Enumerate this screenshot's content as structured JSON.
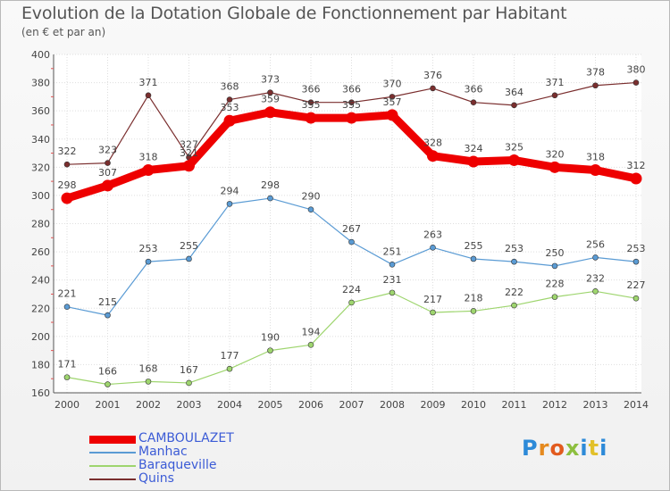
{
  "title": "Evolution de la Dotation Globale de Fonctionnement par Habitant",
  "subtitle": "(en € et par an)",
  "logo": {
    "text": "Proxiti",
    "colors": [
      "#2d8ad8",
      "#e58a1f",
      "#e25b1e",
      "#8dbf3f",
      "#2d8ad8",
      "#e2c02a",
      "#2d8ad8"
    ]
  },
  "chart_data": {
    "type": "line",
    "title": "Evolution de la Dotation Globale de Fonctionnement par Habitant",
    "subtitle": "(en € et par an)",
    "xlabel": "",
    "ylabel": "",
    "ylim": [
      160,
      400
    ],
    "yticks": [
      160,
      180,
      200,
      220,
      240,
      260,
      280,
      300,
      320,
      340,
      360,
      380,
      400
    ],
    "grid": true,
    "legend": "bottom-left",
    "x": [
      "2000",
      "2001",
      "2002",
      "2003",
      "2004",
      "2005",
      "2006",
      "2007",
      "2008",
      "2009",
      "2010",
      "2011",
      "2012",
      "2013",
      "2014"
    ],
    "series": [
      {
        "name": "Quins",
        "color": "#7a2e2e",
        "values": [
          322,
          323,
          371,
          327,
          368,
          373,
          366,
          366,
          370,
          376,
          366,
          364,
          371,
          378,
          380
        ]
      },
      {
        "name": "Baraqueville",
        "color": "#9ed56e",
        "values": [
          171,
          166,
          168,
          167,
          177,
          190,
          194,
          224,
          231,
          217,
          218,
          222,
          228,
          232,
          227
        ]
      },
      {
        "name": "Manhac",
        "color": "#5a9bd4",
        "values": [
          221,
          215,
          253,
          255,
          294,
          298,
          290,
          267,
          251,
          263,
          255,
          253,
          250,
          256,
          253
        ]
      },
      {
        "name": "CAMBOULAZET",
        "color": "#ee0000",
        "values": [
          298,
          307,
          318,
          321,
          353,
          359,
          355,
          355,
          357,
          328,
          324,
          325,
          320,
          318,
          312
        ]
      }
    ]
  },
  "legend": [
    {
      "name": "CAMBOULAZET",
      "color": "#ee0000"
    },
    {
      "name": "Manhac",
      "color": "#5a9bd4"
    },
    {
      "name": "Baraqueville",
      "color": "#9ed56e"
    },
    {
      "name": "Quins",
      "color": "#7a2e2e"
    }
  ]
}
